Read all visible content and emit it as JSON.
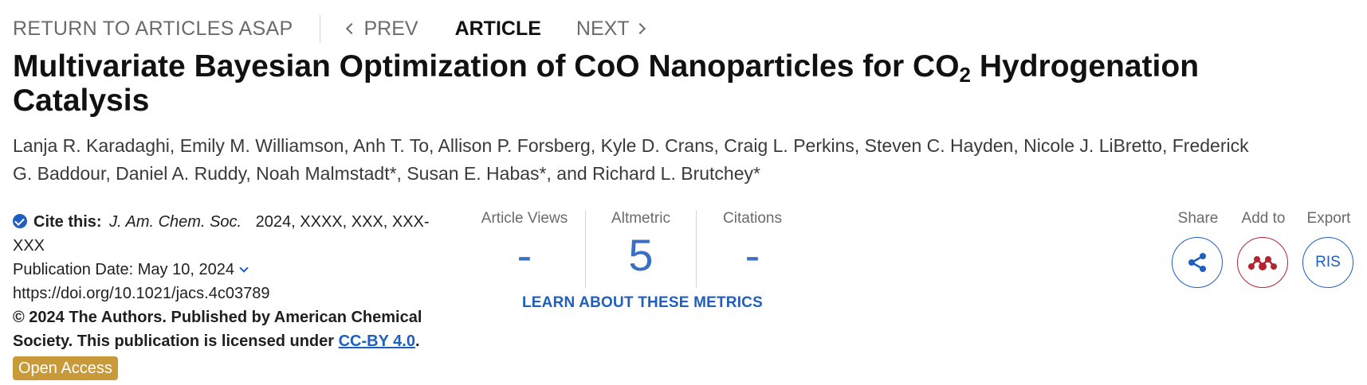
{
  "nav": {
    "return_label": "RETURN TO ARTICLES ASAP",
    "prev_label": "PREV",
    "current_label": "ARTICLE",
    "next_label": "NEXT"
  },
  "article": {
    "title_before_sub": "Multivariate Bayesian Optimization of CoO Nanoparticles for CO",
    "title_sub": "2",
    "title_after_sub": " Hydrogenation Catalysis",
    "authors": "Lanja R. Karadaghi, Emily M. Williamson, Anh T. To, Allison P. Forsberg, Kyle D. Crans, Craig L. Perkins, Steven C. Hayden, Nicole J. LiBretto, Frederick G. Baddour, Daniel A. Ruddy, Noah Malmstadt*, Susan E. Habas*, and Richard L. Brutchey*"
  },
  "citation": {
    "cite_label": "Cite this:",
    "journal": "J. Am. Chem. Soc.",
    "numbers": "2024, XXXX, XXX, XXX-XXX",
    "pub_date_label": "Publication Date: May 10, 2024",
    "doi": "https://doi.org/10.1021/jacs.4c03789",
    "license_text": "© 2024 The Authors. Published by American Chemical Society. This publication is licensed under ",
    "license_link": "CC-BY 4.0",
    "license_end": ".",
    "open_access_badge": "Open Access"
  },
  "metrics": {
    "views_label": "Article Views",
    "views_value": "-",
    "altmetric_label": "Altmetric",
    "altmetric_value": "5",
    "citations_label": "Citations",
    "citations_value": "-",
    "learn_link": "LEARN ABOUT THESE METRICS"
  },
  "actions": {
    "share_label": "Share",
    "add_label": "Add to",
    "export_label": "Export",
    "ris_label": "RIS",
    "share_icon": "share-icon",
    "mendeley_icon": "mendeley-icon"
  },
  "colors": {
    "link_blue": "#1f5fbf",
    "metric_blue": "#3a6fc2",
    "mendeley_red": "#b3262f",
    "open_access_gold": "#c99a3a"
  }
}
